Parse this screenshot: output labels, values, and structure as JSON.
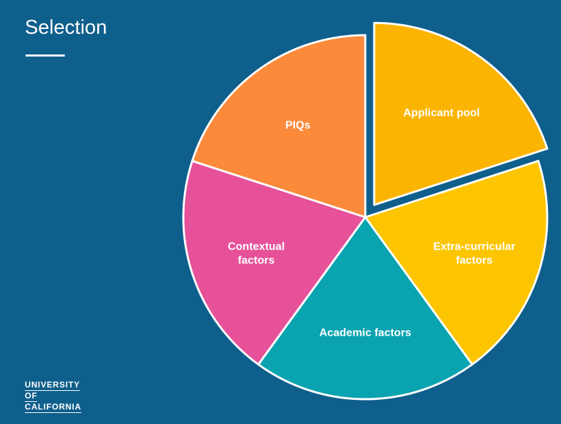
{
  "slide": {
    "title": "Selection"
  },
  "logo": {
    "line1": "UNIVERSITY",
    "line2": "OF",
    "line3": "CALIFORNIA"
  },
  "colors": {
    "background": "#0f5f8c",
    "slice_border": "#ffffff"
  },
  "chart_data": {
    "type": "pie",
    "title": "",
    "start_angle_deg": 0,
    "direction": "clockwise",
    "slices": [
      {
        "label": [
          "Applicant pool"
        ],
        "value": 20,
        "color": "#fbb400",
        "exploded": true
      },
      {
        "label": [
          "Extra-curricular",
          "factors"
        ],
        "value": 20,
        "color": "#fcc500",
        "exploded": false
      },
      {
        "label": [
          "Academic factors"
        ],
        "value": 20,
        "color": "#0aa3b0",
        "exploded": false
      },
      {
        "label": [
          "Contextual",
          "factors"
        ],
        "value": 20,
        "color": "#e6519a",
        "exploded": false
      },
      {
        "label": [
          "PIQs"
        ],
        "value": 20,
        "color": "#fb8a3b",
        "exploded": false
      }
    ]
  }
}
